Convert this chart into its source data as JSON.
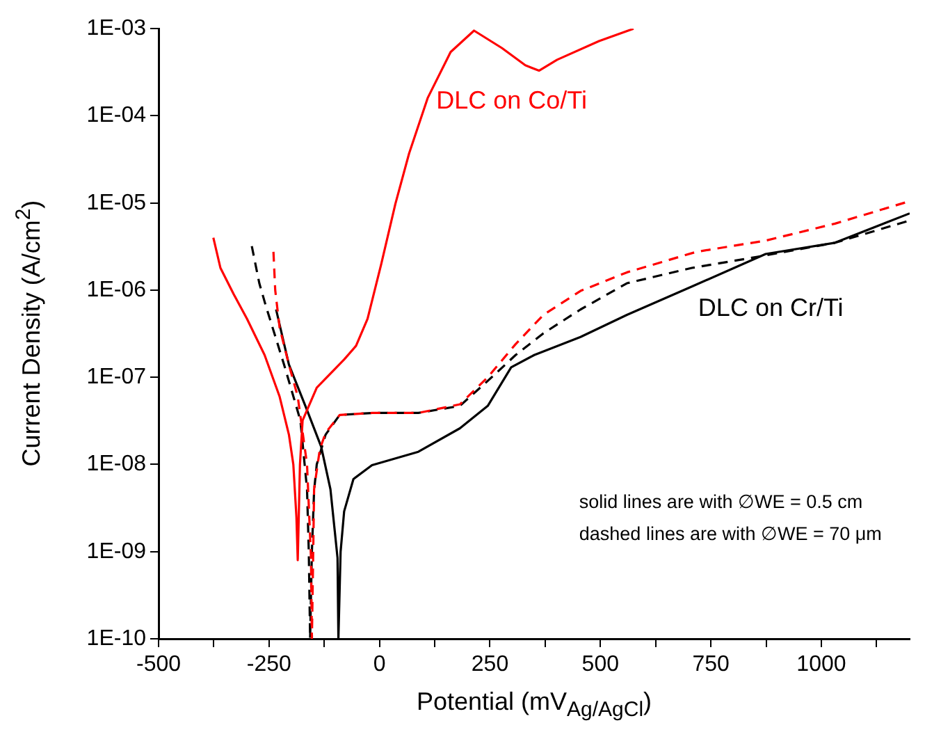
{
  "chart_data": {
    "type": "line",
    "xlabel": "Potential (mV$_{Ag/AgCl}$)",
    "ylabel": "Current Density (A/cm$^{2}$)",
    "log": "y",
    "grid": false,
    "legend": false,
    "marker": "none",
    "xlim": [
      -500,
      1200
    ],
    "xticks": [
      -500,
      {
        "value": -375,
        "label": null
      },
      -250,
      {
        "value": -125,
        "label": null
      },
      0,
      {
        "value": 125,
        "label": null
      },
      250,
      {
        "value": 375,
        "label": null
      },
      500,
      {
        "value": 625,
        "label": null
      },
      750,
      {
        "value": 875,
        "label": null
      },
      1000,
      {
        "value": 1125,
        "label": null
      }
    ],
    "ylim": [
      1e-10,
      0.001
    ],
    "yticks": [
      {
        "value": 1e-10,
        "label": "1E-10"
      },
      {
        "value": 1e-09,
        "label": "1E-09"
      },
      {
        "value": 1e-08,
        "label": "1E-08"
      },
      {
        "value": 1e-07,
        "label": "1E-07"
      },
      {
        "value": 1e-06,
        "label": "1E-06"
      },
      {
        "value": 1e-05,
        "label": "1E-05"
      },
      {
        "value": 0.0001,
        "label": "1E-04"
      },
      {
        "value": 0.001,
        "label": "1E-03"
      }
    ],
    "series": [
      {
        "name": "DLC on Co/Ti",
        "color": "#ff0000",
        "line_style": "solid",
        "x": [
          -376,
          -360,
          -330,
          -300,
          -260,
          -226,
          -205,
          -195,
          -188,
          -185,
          -180,
          -174,
          -142,
          -80,
          -53,
          -27,
          4,
          36,
          67,
          109,
          161,
          214,
          277,
          330,
          361,
          402,
          497,
          575
        ],
        "values": [
          4e-06,
          1.8e-06,
          9e-07,
          4.7e-07,
          1.8e-07,
          6e-08,
          2.2e-08,
          1e-08,
          2.5e-09,
          8e-10,
          1e-08,
          3.2e-08,
          7.6e-08,
          1.6e-07,
          2.3e-07,
          4.7e-07,
          2e-06,
          9.8e-06,
          3.7e-05,
          0.00016,
          0.00054,
          0.00095,
          0.0006,
          0.00038,
          0.00033,
          0.00044,
          0.00072,
          0.001
        ]
      },
      {
        "color": "#ff0000",
        "line_style": "dashed",
        "x": [
          -240,
          -236,
          -226,
          -205,
          -185,
          -164,
          -155,
          -153,
          -150,
          -148,
          -135,
          -122,
          -90,
          -17,
          88,
          182,
          245,
          308,
          371,
          455,
          560,
          717,
          874,
          1031,
          1200
        ],
        "values": [
          2.75e-06,
          1e-06,
          3.7e-07,
          1.4e-07,
          6e-08,
          1e-08,
          8.5e-10,
          1e-10,
          1e-09,
          5.2e-09,
          1.5e-08,
          2.3e-08,
          3.7e-08,
          3.9e-08,
          3.9e-08,
          4.9e-08,
          1e-07,
          2.4e-07,
          5.2e-07,
          9.8e-07,
          1.6e-06,
          2.75e-06,
          3.7e-06,
          5.8e-06,
          1.05e-05
        ]
      },
      {
        "color": "#000000",
        "line_style": "dashed",
        "x": [
          -289,
          -272,
          -258,
          -216,
          -179,
          -164,
          -160,
          -157,
          -153,
          -148,
          -142,
          -122,
          -90,
          -17,
          88,
          182,
          245,
          308,
          371,
          455,
          560,
          707,
          853,
          1031,
          1200
        ],
        "values": [
          3.2e-06,
          1.2e-06,
          6.8e-07,
          1.4e-07,
          3.2e-08,
          5.2e-09,
          1e-09,
          1e-10,
          1e-09,
          5e-09,
          1e-08,
          2.2e-08,
          3.7e-08,
          3.9e-08,
          3.9e-08,
          4.7e-08,
          9.1e-08,
          1.8e-07,
          3.2e-07,
          6e-07,
          1.2e-06,
          1.8e-06,
          2.4e-06,
          3.5e-06,
          6.3e-06
        ]
      },
      {
        "name": "DLC on Cr/Ti",
        "color": "#000000",
        "line_style": "solid",
        "x": [
          -234,
          -205,
          -164,
          -132,
          -111,
          -95,
          -93,
          -88,
          -80,
          -59,
          -17,
          88,
          182,
          245,
          298,
          350,
          455,
          560,
          707,
          874,
          1031,
          1200
        ],
        "values": [
          6e-07,
          1.4e-07,
          4.2e-08,
          1.6e-08,
          5.2e-09,
          8.5e-10,
          1e-10,
          1e-09,
          2.9e-09,
          6.8e-09,
          9.8e-09,
          1.4e-08,
          2.6e-08,
          4.7e-08,
          1.3e-07,
          1.8e-07,
          2.9e-07,
          5.2e-07,
          1.1e-06,
          2.6e-06,
          3.5e-06,
          7.6e-06
        ]
      }
    ],
    "annotations": [
      "solid lines are with ∅WE = 0.5 cm",
      "dashed lines are with ∅WE = 70 μm"
    ]
  }
}
